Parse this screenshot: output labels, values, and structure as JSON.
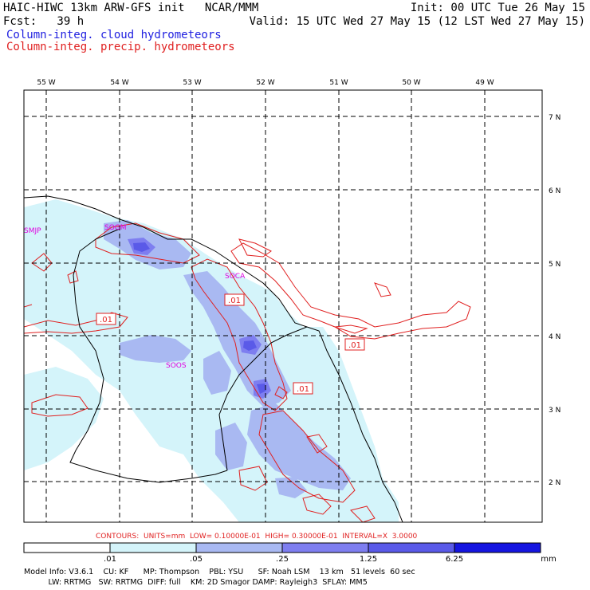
{
  "header": {
    "line1_left": "HAIC-HIWC 13km ARW-GFS init   NCAR/MMM",
    "line1_right": "Init: 00 UTC Tue 26 May 15",
    "line2_left": "Fcst:   39 h",
    "line2_right": "Valid: 15 UTC Wed 27 May 15 (12 LST Wed 27 May 15)",
    "field1": "Column-integ. cloud hydrometeors",
    "field2": "Column-integ. precip. hydrometeors"
  },
  "axes": {
    "lon_labels": [
      "55 W",
      "54 W",
      "53 W",
      "52 W",
      "51 W",
      "50 W",
      "49 W"
    ],
    "lat_labels": [
      "7 N",
      "6 N",
      "5 N",
      "4 N",
      "3 N",
      "2 N"
    ]
  },
  "stations": [
    {
      "name": "SMJP"
    },
    {
      "name": "SOGM"
    },
    {
      "name": "SOCA"
    },
    {
      "name": "SOOS"
    }
  ],
  "contour_labels": [
    ".01",
    ".01",
    ".01",
    ".01"
  ],
  "contours_line": "CONTOURS:  UNITS=mm  LOW= 0.10000E-01  HIGH= 0.30000E-01  INTERVAL=X  3.0000",
  "colorbar": {
    "labels": [
      ".01",
      ".05",
      ".25",
      "1.25",
      "6.25"
    ],
    "units": "mm",
    "colors": [
      "#ffffff",
      "#d4f4fa",
      "#a9b9f2",
      "#7e7ef0",
      "#5a5ae8",
      "#1515e0"
    ]
  },
  "colors": {
    "cloud_text": "#2020e0",
    "precip_text": "#e02020",
    "contour": "#e02020",
    "station": "#e000e0",
    "grid": "#000000"
  },
  "footer": {
    "line1": "Model Info: V3.6.1    CU: KF      MP: Thompson    PBL: YSU      SF: Noah LSM    13 km   51 levels  60 sec",
    "line2": "          LW: RRTMG   SW: RRTMG  DIFF: full    KM: 2D Smagor DAMP: Rayleigh3  SFLAY: MM5"
  }
}
